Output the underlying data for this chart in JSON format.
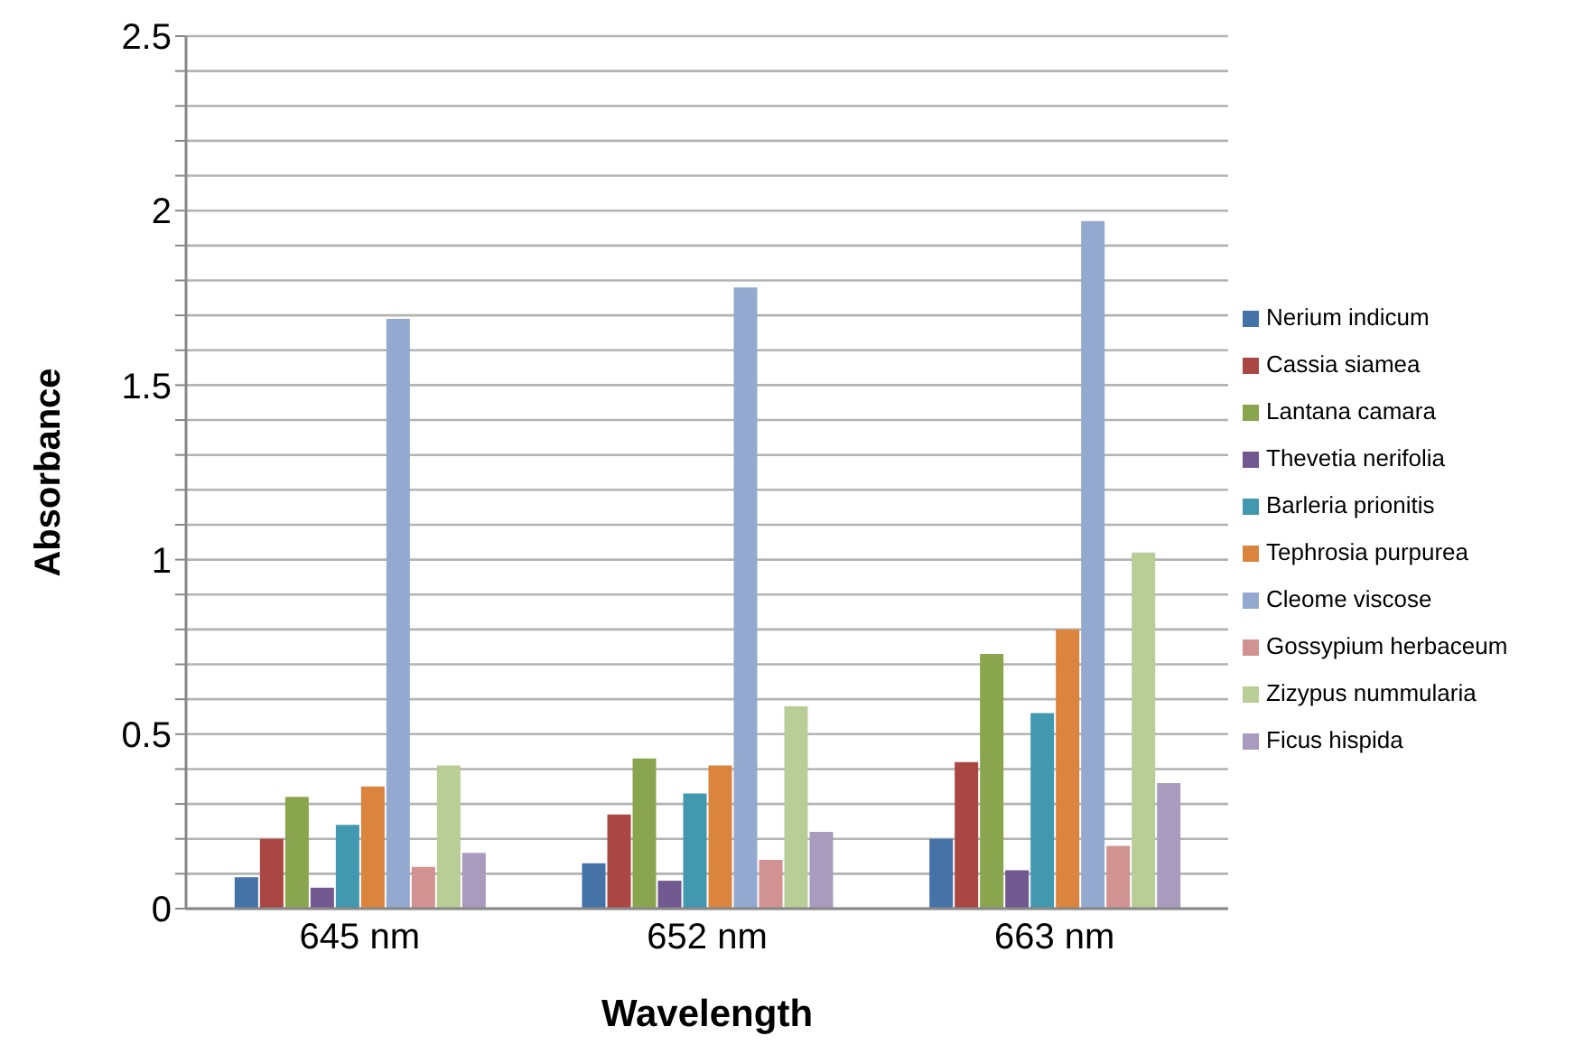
{
  "chart_data": {
    "type": "bar",
    "xlabel": "Wavelength",
    "ylabel": "Absorbance",
    "categories": [
      "645 nm",
      "652 nm",
      "663 nm"
    ],
    "series": [
      {
        "name": "Nerium indicum",
        "color": "#4572a7",
        "values": [
          0.09,
          0.13,
          0.2
        ]
      },
      {
        "name": "Cassia siamea",
        "color": "#aa4643",
        "values": [
          0.2,
          0.27,
          0.42
        ]
      },
      {
        "name": "Lantana camara",
        "color": "#89a54e",
        "values": [
          0.32,
          0.43,
          0.73
        ]
      },
      {
        "name": "Thevetia nerifolia",
        "color": "#71588f",
        "values": [
          0.06,
          0.08,
          0.11
        ]
      },
      {
        "name": "Barleria prionitis",
        "color": "#4198af",
        "values": [
          0.24,
          0.33,
          0.56
        ]
      },
      {
        "name": "Tephrosia purpurea",
        "color": "#db843d",
        "values": [
          0.35,
          0.41,
          0.8
        ]
      },
      {
        "name": "Cleome viscose",
        "color": "#93a9cf",
        "values": [
          1.69,
          1.78,
          1.97
        ]
      },
      {
        "name": "Gossypium herbaceum",
        "color": "#d19392",
        "values": [
          0.12,
          0.14,
          0.18
        ]
      },
      {
        "name": "Zizypus nummularia",
        "color": "#b9cd96",
        "values": [
          0.41,
          0.58,
          1.02
        ]
      },
      {
        "name": "Ficus hispida",
        "color": "#a99bbd",
        "values": [
          0.16,
          0.22,
          0.36
        ]
      }
    ],
    "ylim": [
      0,
      2.5
    ],
    "yticks": [
      0,
      {
        "value": 0.1,
        "label": null
      },
      {
        "value": 0.2,
        "label": null
      },
      {
        "value": 0.3,
        "label": null
      },
      {
        "value": 0.4,
        "label": null
      },
      0.5,
      {
        "value": 0.6,
        "label": null
      },
      {
        "value": 0.7,
        "label": null
      },
      {
        "value": 0.8,
        "label": null
      },
      {
        "value": 0.9,
        "label": null
      },
      1,
      {
        "value": 1.1,
        "label": null
      },
      {
        "value": 1.2,
        "label": null
      },
      {
        "value": 1.3,
        "label": null
      },
      {
        "value": 1.4,
        "label": null
      },
      1.5,
      {
        "value": 1.6,
        "label": null
      },
      {
        "value": 1.7,
        "label": null
      },
      {
        "value": 1.8,
        "label": null
      },
      {
        "value": 1.9,
        "label": null
      },
      2,
      {
        "value": 2.1,
        "label": null
      },
      {
        "value": 2.2,
        "label": null
      },
      {
        "value": 2.3,
        "label": null
      },
      {
        "value": 2.4,
        "label": null
      },
      2.5
    ],
    "grid": "y",
    "legend": "right"
  }
}
